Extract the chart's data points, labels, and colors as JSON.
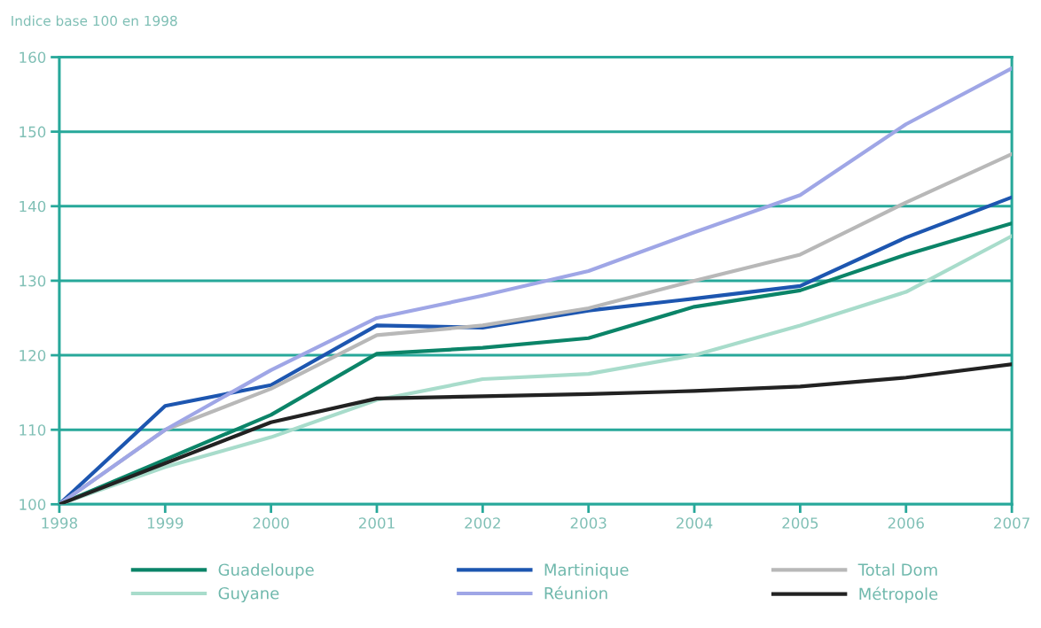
{
  "chart_data": {
    "type": "line",
    "ylabel": "Indice base 100 en 1998",
    "x": [
      1998,
      1999,
      2000,
      2001,
      2002,
      2003,
      2004,
      2005,
      2006,
      2007
    ],
    "xlim": [
      1998,
      2007
    ],
    "xticks": [
      1998,
      1999,
      2000,
      2001,
      2002,
      2003,
      2004,
      2005,
      2006,
      2007
    ],
    "ylim": [
      100,
      160
    ],
    "yticks": [
      100,
      110,
      120,
      130,
      140,
      150,
      160
    ],
    "grid": "y",
    "legend": "bottom",
    "marker": "none",
    "line_style": "solid",
    "series": [
      {
        "name": "Guadeloupe",
        "color": "#0b8468",
        "values": [
          100,
          106,
          112,
          120.2,
          121,
          122.3,
          126.5,
          128.7,
          133.5,
          137.7
        ]
      },
      {
        "name": "Martinique",
        "color": "#1d56b0",
        "values": [
          100,
          113.2,
          116,
          124,
          123.7,
          126,
          127.6,
          129.3,
          135.8,
          141.2
        ]
      },
      {
        "name": "Total Dom",
        "color": "#b8b8b8",
        "values": [
          100,
          110,
          115.5,
          122.7,
          124,
          126.3,
          130,
          133.5,
          140.5,
          147
        ]
      },
      {
        "name": "Guyane",
        "color": "#a8dccb",
        "values": [
          100,
          105,
          109,
          114,
          116.8,
          117.5,
          120,
          124,
          128.5,
          136
        ]
      },
      {
        "name": "Réunion",
        "color": "#9fa6e6",
        "values": [
          100,
          110,
          118,
          125,
          128,
          131.3,
          136.5,
          141.5,
          151,
          158.5
        ]
      },
      {
        "name": "Métropole",
        "color": "#222222",
        "values": [
          100,
          105.5,
          111,
          114.2,
          114.5,
          114.8,
          115.2,
          115.8,
          117,
          118.8
        ]
      }
    ]
  }
}
